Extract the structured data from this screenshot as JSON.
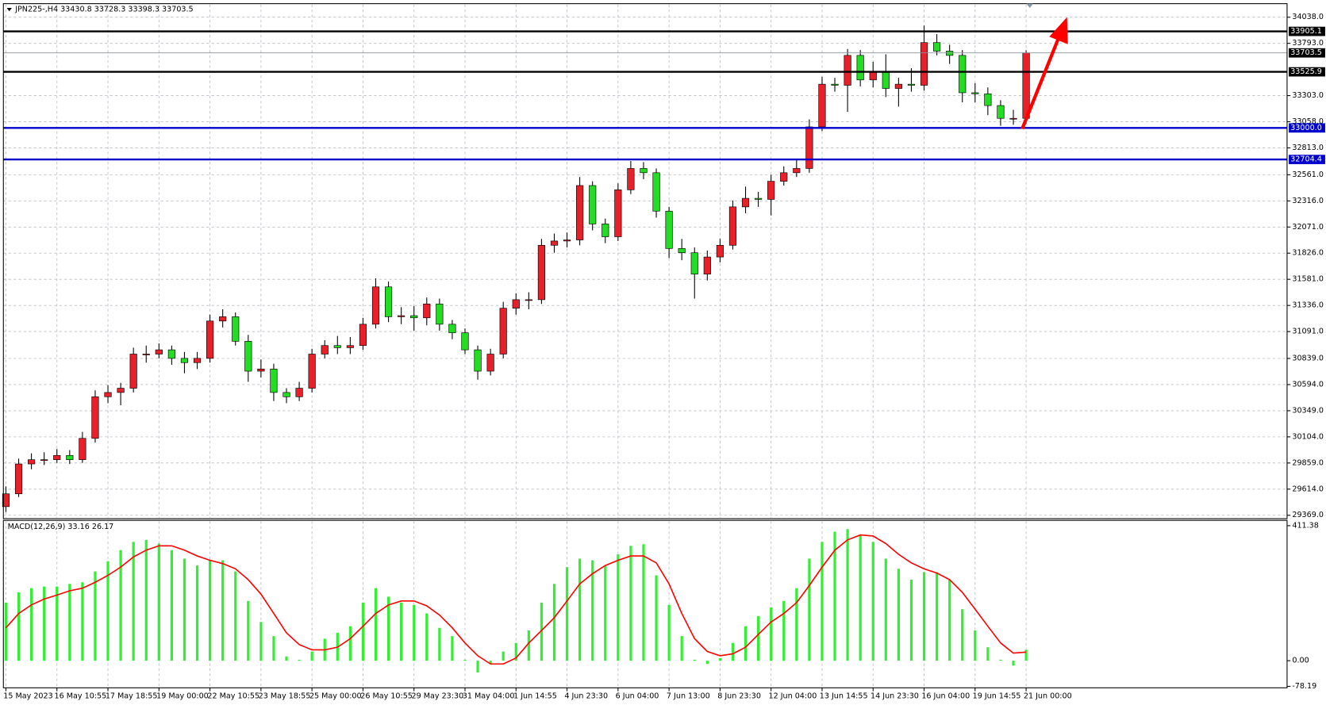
{
  "chart_data": [
    {
      "type": "candlestick",
      "title": "JPN225-,H4  33430.8 33728.3 33398.3 33703.5",
      "categories": [
        "15 May 2023",
        null,
        null,
        null,
        "16 May 10:55",
        null,
        null,
        null,
        "17 May 18:55",
        null,
        null,
        null,
        "19 May 00:00",
        null,
        null,
        null,
        "22 May 10:55",
        null,
        null,
        null,
        "23 May 18:55",
        null,
        null,
        null,
        "25 May 00:00",
        null,
        null,
        null,
        "26 May 10:55",
        null,
        null,
        null,
        "29 May 23:30",
        null,
        null,
        null,
        "31 May 04:00",
        null,
        null,
        null,
        "1 Jun 14:55",
        null,
        null,
        null,
        "4 Jun 23:30",
        null,
        null,
        null,
        "6 Jun 04:00",
        null,
        null,
        null,
        "7 Jun 13:00",
        null,
        null,
        null,
        "8 Jun 23:30",
        null,
        null,
        null,
        "12 Jun 04:00",
        null,
        null,
        null,
        "13 Jun 14:55",
        null,
        null,
        null,
        "14 Jun 23:30",
        null,
        null,
        null,
        "16 Jun 04:00",
        null,
        null,
        null,
        "19 Jun 14:55",
        null,
        null,
        null,
        "21 Jun 00:00"
      ],
      "ohlc": [
        [
          29450,
          29640,
          29400,
          29570
        ],
        [
          29570,
          29900,
          29540,
          29850
        ],
        [
          29850,
          29950,
          29800,
          29890
        ],
        [
          29890,
          29960,
          29840,
          29890
        ],
        [
          29890,
          29990,
          29860,
          29930
        ],
        [
          29930,
          29980,
          29850,
          29890
        ],
        [
          29890,
          30150,
          29860,
          30090
        ],
        [
          30090,
          30540,
          30050,
          30480
        ],
        [
          30480,
          30590,
          30420,
          30520
        ],
        [
          30520,
          30610,
          30400,
          30560
        ],
        [
          30560,
          30940,
          30520,
          30880
        ],
        [
          30880,
          30960,
          30800,
          30880
        ],
        [
          30880,
          30980,
          30840,
          30920
        ],
        [
          30920,
          30960,
          30780,
          30840
        ],
        [
          30840,
          30900,
          30700,
          30800
        ],
        [
          30800,
          30900,
          30740,
          30840
        ],
        [
          30840,
          31250,
          30800,
          31190
        ],
        [
          31190,
          31300,
          31130,
          31230
        ],
        [
          31230,
          31270,
          30960,
          31000
        ],
        [
          31000,
          31060,
          30620,
          30720
        ],
        [
          30720,
          30830,
          30660,
          30740
        ],
        [
          30740,
          30790,
          30440,
          30520
        ],
        [
          30520,
          30560,
          30420,
          30480
        ],
        [
          30480,
          30620,
          30440,
          30560
        ],
        [
          30560,
          30930,
          30520,
          30880
        ],
        [
          30880,
          31010,
          30840,
          30960
        ],
        [
          30960,
          31050,
          30880,
          30940
        ],
        [
          30940,
          31040,
          30880,
          30960
        ],
        [
          30960,
          31220,
          30920,
          31160
        ],
        [
          31160,
          31590,
          31120,
          31510
        ],
        [
          31510,
          31560,
          31180,
          31230
        ],
        [
          31230,
          31320,
          31160,
          31240
        ],
        [
          31240,
          31330,
          31100,
          31220
        ],
        [
          31220,
          31410,
          31150,
          31350
        ],
        [
          31350,
          31400,
          31100,
          31160
        ],
        [
          31160,
          31200,
          31020,
          31080
        ],
        [
          31080,
          31120,
          30880,
          30920
        ],
        [
          30920,
          30960,
          30640,
          30720
        ],
        [
          30720,
          30930,
          30680,
          30880
        ],
        [
          30880,
          31370,
          30840,
          31310
        ],
        [
          31310,
          31450,
          31250,
          31390
        ],
        [
          31390,
          31460,
          31300,
          31390
        ],
        [
          31390,
          31960,
          31350,
          31900
        ],
        [
          31900,
          32010,
          31830,
          31940
        ],
        [
          31940,
          32020,
          31880,
          31950
        ],
        [
          31950,
          32540,
          31900,
          32460
        ],
        [
          32460,
          32500,
          32040,
          32100
        ],
        [
          32100,
          32150,
          31920,
          31980
        ],
        [
          31980,
          32480,
          31940,
          32420
        ],
        [
          32420,
          32690,
          32380,
          32620
        ],
        [
          32620,
          32680,
          32520,
          32580
        ],
        [
          32580,
          32620,
          32160,
          32220
        ],
        [
          32220,
          32260,
          31780,
          31870
        ],
        [
          31870,
          31960,
          31760,
          31830
        ],
        [
          31830,
          31880,
          31400,
          31630
        ],
        [
          31630,
          31850,
          31570,
          31790
        ],
        [
          31790,
          31960,
          31740,
          31900
        ],
        [
          31900,
          32320,
          31860,
          32260
        ],
        [
          32260,
          32450,
          32200,
          32340
        ],
        [
          32340,
          32400,
          32260,
          32330
        ],
        [
          32330,
          32560,
          32180,
          32500
        ],
        [
          32500,
          32640,
          32460,
          32580
        ],
        [
          32580,
          32700,
          32540,
          32620
        ],
        [
          32620,
          33080,
          32580,
          33010
        ],
        [
          33010,
          33480,
          32970,
          33410
        ],
        [
          33410,
          33470,
          33340,
          33400
        ],
        [
          33400,
          33740,
          33150,
          33680
        ],
        [
          33680,
          33730,
          33390,
          33450
        ],
        [
          33450,
          33620,
          33380,
          33530
        ],
        [
          33530,
          33690,
          33290,
          33370
        ],
        [
          33370,
          33470,
          33200,
          33410
        ],
        [
          33410,
          33560,
          33340,
          33400
        ],
        [
          33400,
          33960,
          33350,
          33800
        ],
        [
          33800,
          33880,
          33680,
          33720
        ],
        [
          33720,
          33780,
          33600,
          33680
        ],
        [
          33680,
          33730,
          33240,
          33330
        ],
        [
          33330,
          33420,
          33240,
          33320
        ],
        [
          33320,
          33380,
          33120,
          33210
        ],
        [
          33210,
          33260,
          33020,
          33090
        ],
        [
          33090,
          33170,
          33030,
          33090
        ],
        [
          33090,
          33728.3,
          33040,
          33703.5
        ]
      ],
      "up_color": "#e8202a",
      "down_color": "#22dd22",
      "ylim": [
        29345,
        34157
      ],
      "yticks": [
        {
          "value": 34038,
          "label": "34038.0"
        },
        {
          "value": 33793,
          "label": "33793.0"
        },
        {
          "value": 33303,
          "label": "33303.0"
        },
        {
          "value": 33058,
          "label": "33058.0"
        },
        {
          "value": 32813,
          "label": "32813.0"
        },
        {
          "value": 32561,
          "label": "32561.0"
        },
        {
          "value": 32316,
          "label": "32316.0"
        },
        {
          "value": 32071,
          "label": "32071.0"
        },
        {
          "value": 31826,
          "label": "31826.0"
        },
        {
          "value": 31581,
          "label": "31581.0"
        },
        {
          "value": 31336,
          "label": "31336.0"
        },
        {
          "value": 31091,
          "label": "31091.0"
        },
        {
          "value": 30839,
          "label": "30839.0"
        },
        {
          "value": 30594,
          "label": "30594.0"
        },
        {
          "value": 30349,
          "label": "30349.0"
        },
        {
          "value": 30104,
          "label": "30104.0"
        },
        {
          "value": 29859,
          "label": "29859.0"
        },
        {
          "value": 29614,
          "label": "29614.0"
        },
        {
          "value": 29369,
          "label": "29369.0"
        }
      ],
      "grid": true,
      "levels": [
        {
          "value": 33905.1,
          "color": "#000000"
        },
        {
          "value": 33525.9,
          "color": "#000000"
        },
        {
          "value": 33000,
          "label": "33000.0",
          "color": "#0000cc"
        },
        {
          "value": 32704.4,
          "color": "#0000cc"
        }
      ],
      "price_line": 33703.5
    },
    {
      "type": "macd",
      "title": "MACD(12,26,9) 33.16 26.17",
      "histogram_color": "#33ee33",
      "histogram_values": [
        177,
        208,
        221,
        226,
        226,
        234,
        239,
        272,
        303,
        337,
        362,
        368,
        357,
        337,
        311,
        290,
        306,
        306,
        272,
        182,
        118,
        75,
        13,
        3,
        28,
        67,
        85,
        105,
        177,
        221,
        195,
        177,
        170,
        144,
        100,
        75,
        3,
        -36,
        -10,
        28,
        54,
        92,
        177,
        234,
        285,
        311,
        306,
        290,
        324,
        350,
        355,
        260,
        170,
        75,
        3,
        -10,
        8,
        54,
        105,
        136,
        162,
        182,
        221,
        311,
        362,
        393,
        401,
        383,
        362,
        311,
        280,
        247,
        270,
        270,
        247,
        157,
        92,
        41,
        3,
        -15,
        33.16
      ],
      "signal_color": "#ff0000",
      "signal_values": [
        100,
        144,
        170,
        188,
        200,
        213,
        221,
        239,
        260,
        285,
        316,
        337,
        350,
        350,
        337,
        319,
        306,
        296,
        280,
        247,
        203,
        144,
        85,
        49,
        33,
        33,
        41,
        67,
        105,
        144,
        170,
        182,
        182,
        167,
        139,
        100,
        54,
        15,
        -10,
        -10,
        8,
        54,
        92,
        131,
        182,
        234,
        265,
        290,
        306,
        319,
        319,
        298,
        234,
        144,
        67,
        28,
        15,
        21,
        41,
        80,
        118,
        144,
        177,
        229,
        285,
        337,
        368,
        383,
        380,
        357,
        324,
        298,
        280,
        267,
        247,
        208,
        157,
        105,
        54,
        23,
        26.17
      ],
      "ylim": [
        -80,
        425
      ],
      "yticks": [
        411.38,
        {
          "value": 0,
          "label": "0.00"
        },
        -78.19
      ]
    }
  ]
}
